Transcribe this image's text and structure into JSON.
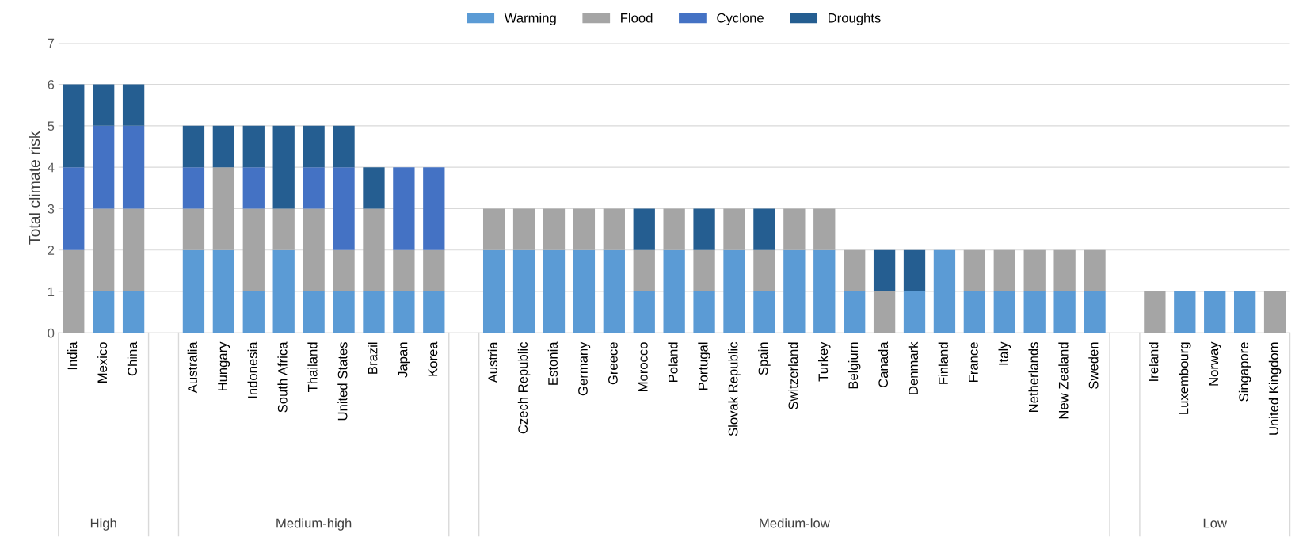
{
  "chart_data": {
    "type": "bar",
    "stacked": true,
    "ylabel": "Total climate risk",
    "categories": [
      "India",
      "Mexico",
      "China",
      null,
      "Australia",
      "Hungary",
      "Indonesia",
      "South Africa",
      "Thailand",
      "United States",
      "Brazil",
      "Japan",
      "Korea",
      null,
      "Austria",
      "Czech Republic",
      "Estonia",
      "Germany",
      "Greece",
      "Morocco",
      "Poland",
      "Portugal",
      "Slovak Republic",
      "Spain",
      "Switzerland",
      "Turkey",
      "Belgium",
      "Canada",
      "Denmark",
      "Finland",
      "France",
      "Italy",
      "Netherlands",
      "New Zealand",
      "Sweden",
      null,
      "Ireland",
      "Luxembourg",
      "Norway",
      "Singapore",
      "United Kingdom"
    ],
    "series": [
      {
        "name": "Warming",
        "color": "#5b9bd5",
        "values": [
          0,
          1,
          1,
          null,
          2,
          2,
          1,
          2,
          1,
          1,
          1,
          1,
          1,
          null,
          2,
          2,
          2,
          2,
          2,
          1,
          2,
          1,
          2,
          1,
          2,
          2,
          1,
          0,
          1,
          2,
          1,
          1,
          1,
          1,
          1,
          null,
          0,
          1,
          1,
          1,
          0
        ]
      },
      {
        "name": "Flood",
        "color": "#a5a5a5",
        "values": [
          2,
          2,
          2,
          null,
          1,
          2,
          2,
          1,
          2,
          1,
          2,
          1,
          1,
          null,
          1,
          1,
          1,
          1,
          1,
          1,
          1,
          1,
          1,
          1,
          1,
          1,
          1,
          1,
          0,
          0,
          1,
          1,
          1,
          1,
          1,
          null,
          1,
          0,
          0,
          0,
          1
        ]
      },
      {
        "name": "Cyclone",
        "color": "#4472c4",
        "values": [
          2,
          2,
          2,
          null,
          1,
          0,
          1,
          0,
          1,
          2,
          0,
          2,
          2,
          null,
          0,
          0,
          0,
          0,
          0,
          0,
          0,
          0,
          0,
          0,
          0,
          0,
          0,
          0,
          0,
          0,
          0,
          0,
          0,
          0,
          0,
          null,
          0,
          0,
          0,
          0,
          0
        ]
      },
      {
        "name": "Droughts",
        "color": "#255e91",
        "values": [
          2,
          1,
          1,
          null,
          1,
          1,
          1,
          2,
          1,
          1,
          1,
          0,
          0,
          null,
          0,
          0,
          0,
          0,
          0,
          1,
          0,
          1,
          0,
          1,
          0,
          0,
          0,
          1,
          1,
          0,
          0,
          0,
          0,
          0,
          0,
          null,
          0,
          0,
          0,
          0,
          0
        ]
      }
    ],
    "ylim": [
      0,
      7
    ],
    "yticks": [
      0,
      1,
      2,
      3,
      4,
      5,
      6,
      7
    ],
    "grid": "y",
    "legend": "top",
    "annotations": [
      "High",
      "Medium-high",
      "Medium-low",
      "Low"
    ]
  }
}
